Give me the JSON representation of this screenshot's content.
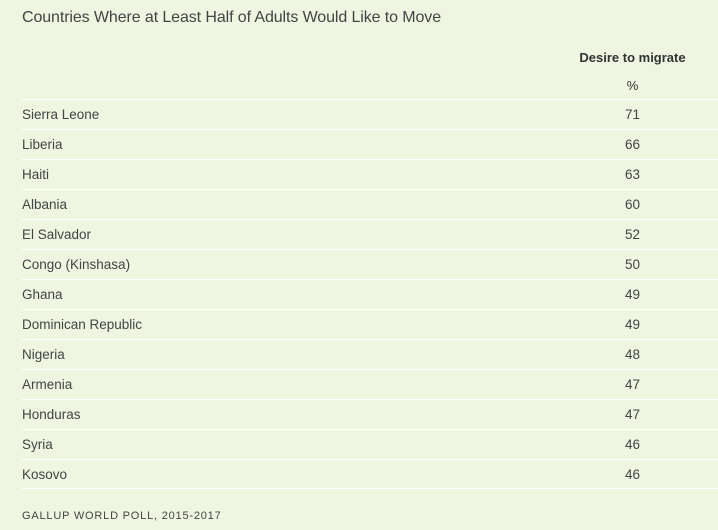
{
  "title": "Countries Where at Least Half of Adults Would Like to Move",
  "column_header": "Desire to migrate",
  "column_unit": "%",
  "source": "GALLUP WORLD POLL, 2015-2017",
  "chart_data": {
    "type": "table",
    "title": "Countries Where at Least Half of Adults Would Like to Move",
    "columns": [
      "",
      "Desire to migrate"
    ],
    "unit": "%",
    "rows": [
      {
        "country": "Sierra Leone",
        "value": "71"
      },
      {
        "country": "Liberia",
        "value": "66"
      },
      {
        "country": "Haiti",
        "value": "63"
      },
      {
        "country": "Albania",
        "value": "60"
      },
      {
        "country": "El Salvador",
        "value": "52"
      },
      {
        "country": "Congo (Kinshasa)",
        "value": "50"
      },
      {
        "country": "Ghana",
        "value": "49"
      },
      {
        "country": "Dominican Republic",
        "value": "49"
      },
      {
        "country": "Nigeria",
        "value": "48"
      },
      {
        "country": "Armenia",
        "value": "47"
      },
      {
        "country": "Honduras",
        "value": "47"
      },
      {
        "country": "Syria",
        "value": "46"
      },
      {
        "country": "Kosovo",
        "value": "46"
      }
    ]
  }
}
